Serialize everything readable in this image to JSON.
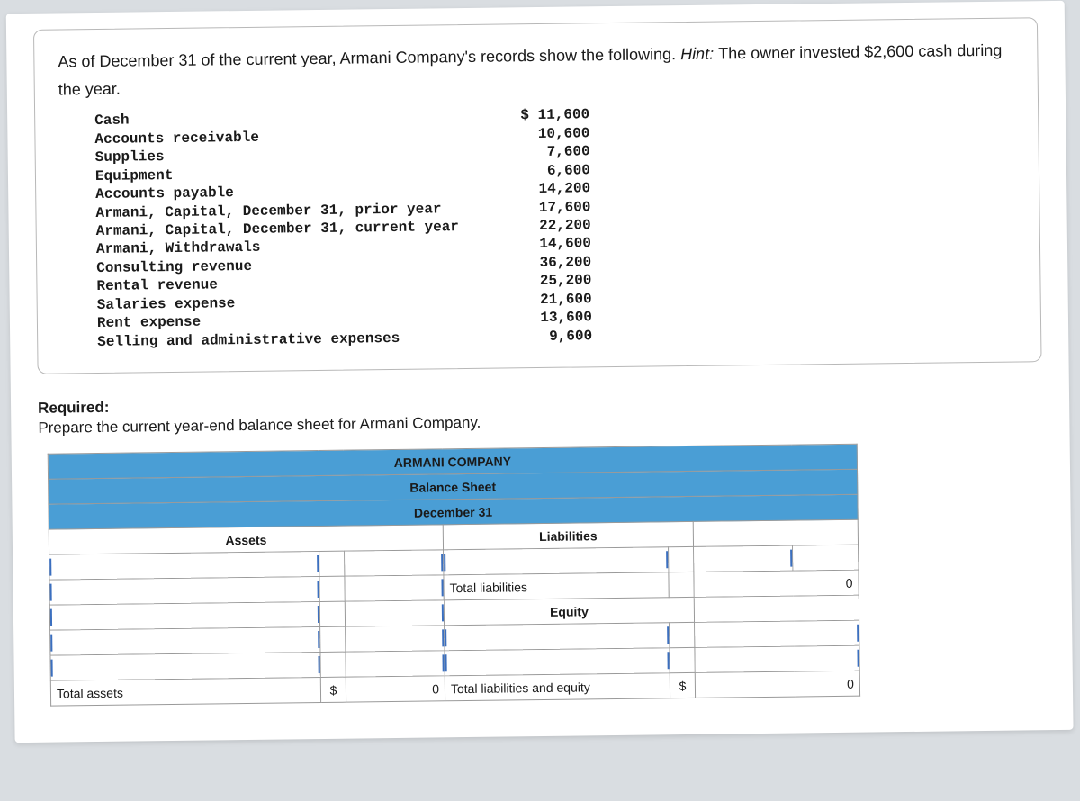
{
  "problem": {
    "intro_pre": "As of December 31 of the current year, Armani Company's records show the following. ",
    "hint_label": "Hint: ",
    "intro_post": "The owner invested $2,600 cash during the year.",
    "records": [
      {
        "label": "Cash",
        "value": "$ 11,600"
      },
      {
        "label": "Accounts receivable",
        "value": "10,600"
      },
      {
        "label": "Supplies",
        "value": "7,600"
      },
      {
        "label": "Equipment",
        "value": "6,600"
      },
      {
        "label": "Accounts payable",
        "value": "14,200"
      },
      {
        "label": "Armani, Capital, December 31, prior year",
        "value": "17,600"
      },
      {
        "label": "Armani, Capital, December 31, current year",
        "value": "22,200"
      },
      {
        "label": "Armani, Withdrawals",
        "value": "14,600"
      },
      {
        "label": "Consulting revenue",
        "value": "36,200"
      },
      {
        "label": "Rental revenue",
        "value": "25,200"
      },
      {
        "label": "Salaries expense",
        "value": "21,600"
      },
      {
        "label": "Rent expense",
        "value": "13,600"
      },
      {
        "label": "Selling and administrative expenses",
        "value": "9,600"
      }
    ]
  },
  "required": {
    "title": "Required:",
    "text": "Prepare the current year-end balance sheet for Armani Company."
  },
  "balance_sheet": {
    "company": "ARMANI COMPANY",
    "title": "Balance Sheet",
    "date": "December 31",
    "assets_header": "Assets",
    "liabilities_header": "Liabilities",
    "equity_header": "Equity",
    "total_assets_label": "Total assets",
    "total_liab_label": "Total liabilities",
    "total_liab_equity_label": "Total liabilities and equity",
    "dollar": "$",
    "zero": "0",
    "colors": {
      "header_bg": "#4a9ed5",
      "border": "#9a9a9a",
      "caret": "#3b6fbf"
    }
  }
}
